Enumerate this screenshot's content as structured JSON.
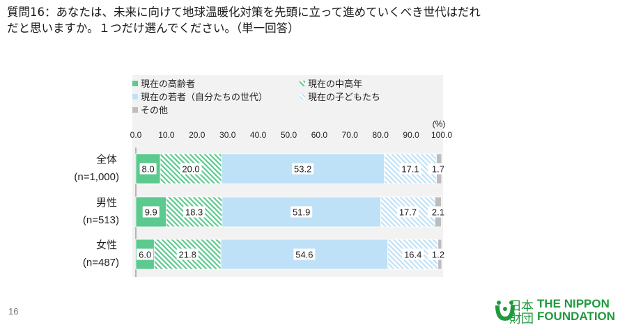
{
  "question": {
    "line1": "質問16：あなたは、未来に向けて地球温暖化対策を先頭に立って進めていくべき世代はだれ",
    "line2": "だと思いますか。１つだけ選んでください。（単一回答）"
  },
  "chart_data": {
    "type": "bar",
    "orientation": "horizontal-stacked-100",
    "unit_label": "(%)",
    "xlim": [
      0,
      100
    ],
    "ticks": [
      "0.0",
      "10.0",
      "20.0",
      "30.0",
      "40.0",
      "50.0",
      "60.0",
      "70.0",
      "80.0",
      "90.0",
      "100.0"
    ],
    "grid": false,
    "legend_position": "top",
    "categories": [
      {
        "name": "全体",
        "n": "(n=1,000)"
      },
      {
        "name": "男性",
        "n": "(n=513)"
      },
      {
        "name": "女性",
        "n": "(n=487)"
      }
    ],
    "series": [
      {
        "name": "現在の高齢者",
        "values": [
          8.0,
          9.9,
          6.0
        ],
        "labels": [
          "8.0",
          "9.9",
          "6.0"
        ],
        "color": "#5cc98f",
        "pattern": "solid"
      },
      {
        "name": "現在の中高年",
        "values": [
          20.0,
          18.3,
          21.8
        ],
        "labels": [
          "20.0",
          "18.3",
          "21.8"
        ],
        "color": "#5cc98f",
        "pattern": "hatch"
      },
      {
        "name": "現在の若者（自分たちの世代）",
        "values": [
          53.2,
          51.9,
          54.6
        ],
        "labels": [
          "53.2",
          "51.9",
          "54.6"
        ],
        "color": "#bfe1f7",
        "pattern": "solid"
      },
      {
        "name": "現在の子どもたち",
        "values": [
          17.1,
          17.7,
          16.4
        ],
        "labels": [
          "17.1",
          "17.7",
          "16.4"
        ],
        "color": "#bfe1f7",
        "pattern": "hatch"
      },
      {
        "name": "その他",
        "values": [
          1.7,
          2.1,
          1.2
        ],
        "labels": [
          "1.7",
          "2.1",
          "1.2"
        ],
        "color": "#bdbdbd",
        "pattern": "solid"
      }
    ]
  },
  "page_number": "16",
  "logo": {
    "kanji_line1": "日本",
    "kanji_line2": "財団",
    "en_line1": "THE NIPPON",
    "en_line2": "FOUNDATION",
    "color": "#1f9a3d"
  }
}
